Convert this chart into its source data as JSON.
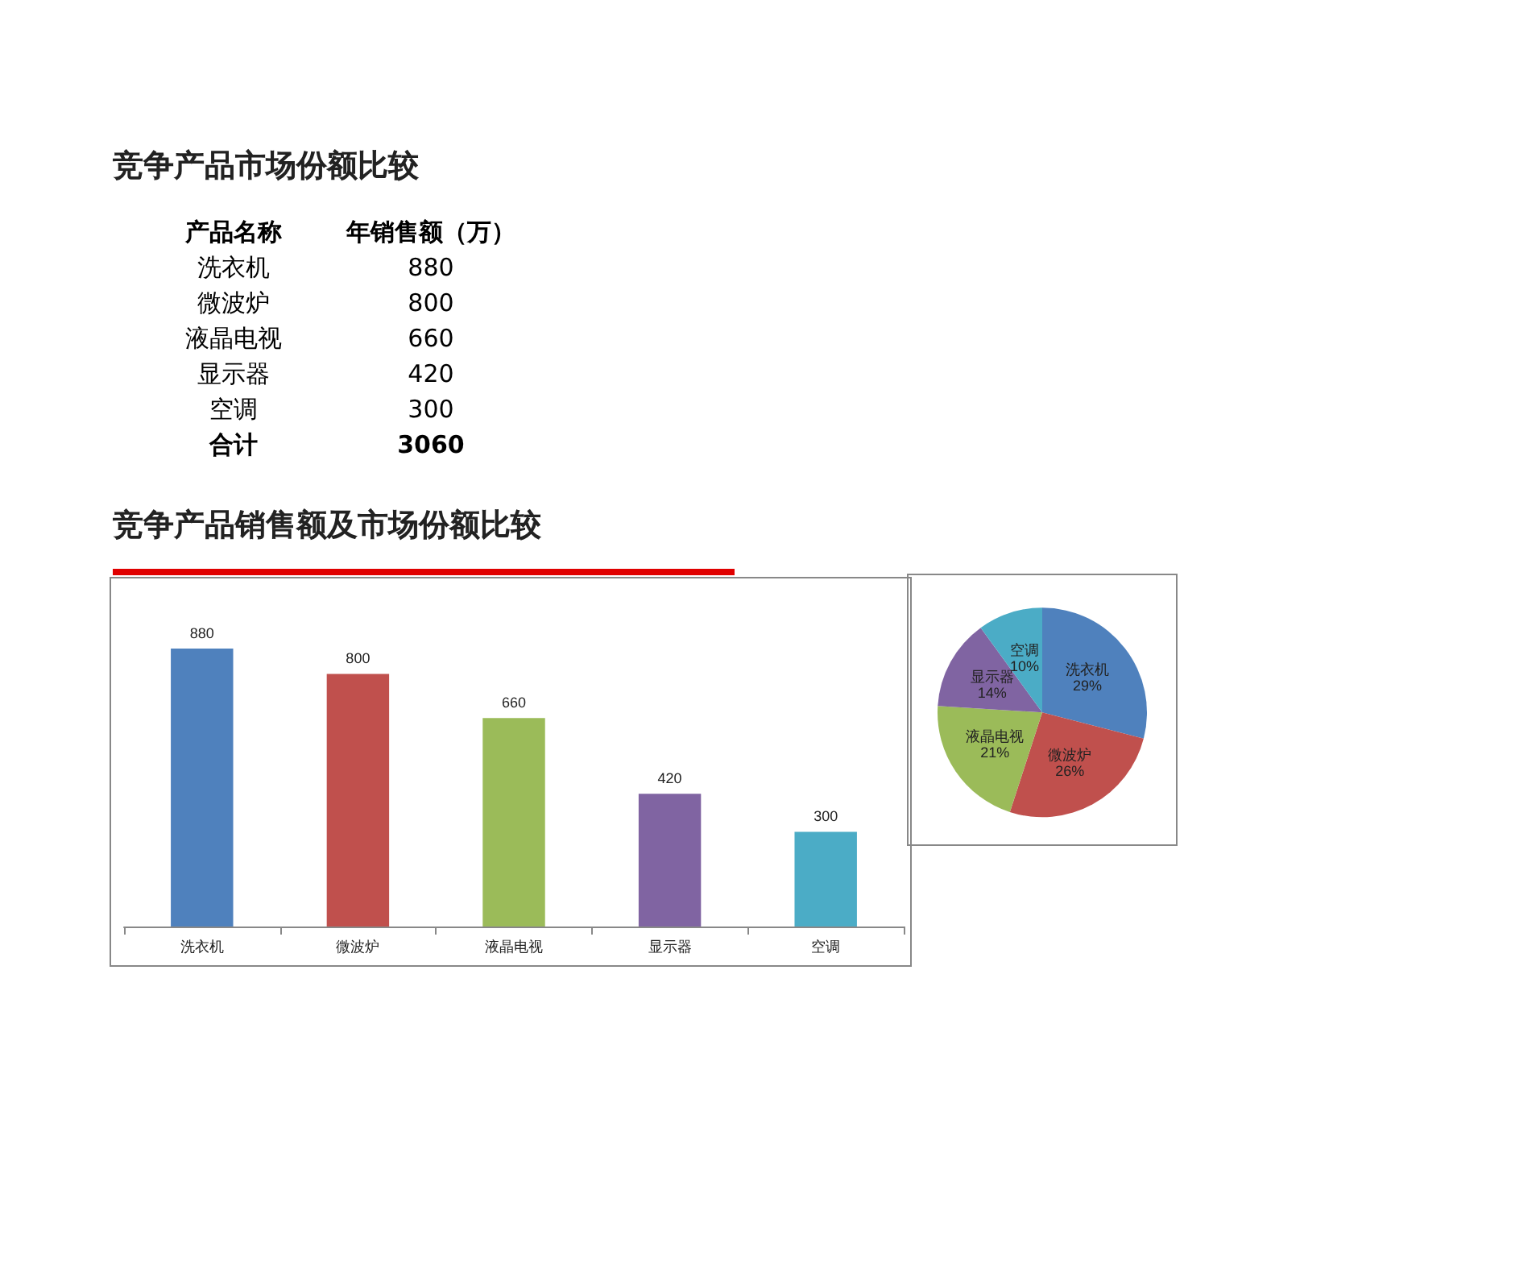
{
  "chart_data": [
    {
      "type": "other",
      "title": "竞争产品市场份额比较",
      "annotations": [
        "产品名称",
        "年销售额（万）",
        "洗衣机",
        "880",
        "微波炉",
        "800",
        "液晶电视",
        "660",
        "显示器",
        "420",
        "空调",
        "300",
        "合计",
        "3060"
      ]
    },
    {
      "type": "bar",
      "title": "竞争产品销售额及市场份额比较",
      "categories": [
        "洗衣机",
        "微波炉",
        "液晶电视",
        "显示器",
        "空调"
      ],
      "values": [
        880,
        800,
        660,
        420,
        300
      ],
      "colors": [
        "#4f81bd",
        "#c0504d",
        "#9bbb59",
        "#8064a2",
        "#4bacc6"
      ],
      "data_labels": true,
      "legend": false
    },
    {
      "type": "pie",
      "categories": [
        "洗衣机",
        "微波炉",
        "液晶电视",
        "显示器",
        "空调"
      ],
      "values": [
        29,
        26,
        21,
        14,
        10
      ],
      "value_labels": [
        "29%",
        "26%",
        "21%",
        "14%",
        "10%"
      ],
      "colors": [
        "#4f81bd",
        "#c0504d",
        "#9bbb59",
        "#8064a2",
        "#4bacc6"
      ],
      "legend": false
    }
  ]
}
